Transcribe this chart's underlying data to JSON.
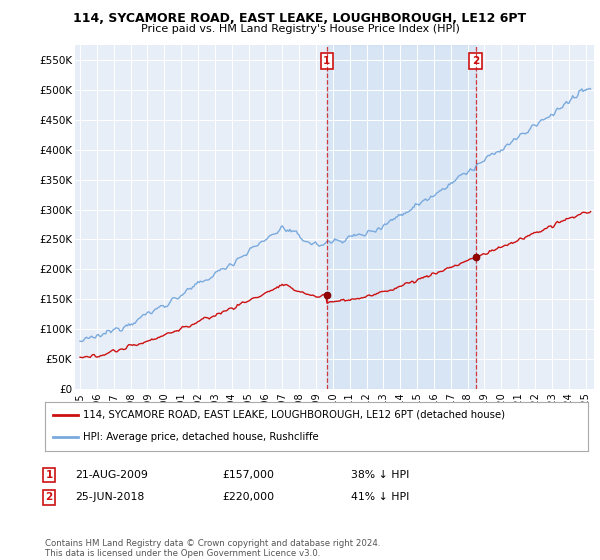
{
  "title": "114, SYCAMORE ROAD, EAST LEAKE, LOUGHBOROUGH, LE12 6PT",
  "subtitle": "Price paid vs. HM Land Registry's House Price Index (HPI)",
  "ylabel_ticks": [
    "£0",
    "£50K",
    "£100K",
    "£150K",
    "£200K",
    "£250K",
    "£300K",
    "£350K",
    "£400K",
    "£450K",
    "£500K",
    "£550K"
  ],
  "ylim": [
    0,
    575000
  ],
  "yticks": [
    0,
    50000,
    100000,
    150000,
    200000,
    250000,
    300000,
    350000,
    400000,
    450000,
    500000,
    550000
  ],
  "background_color": "#e8eef8",
  "hpi_color": "#7aaadd",
  "price_color": "#cc1111",
  "sale1_year": 2009.65,
  "sale1_price": 157000,
  "sale2_year": 2018.48,
  "sale2_price": 220000,
  "legend_entry1": "114, SYCAMORE ROAD, EAST LEAKE, LOUGHBOROUGH, LE12 6PT (detached house)",
  "legend_entry2": "HPI: Average price, detached house, Rushcliffe",
  "footnote": "Contains HM Land Registry data © Crown copyright and database right 2024.\nThis data is licensed under the Open Government Licence v3.0.",
  "xmin": 1994.7,
  "xmax": 2025.5
}
